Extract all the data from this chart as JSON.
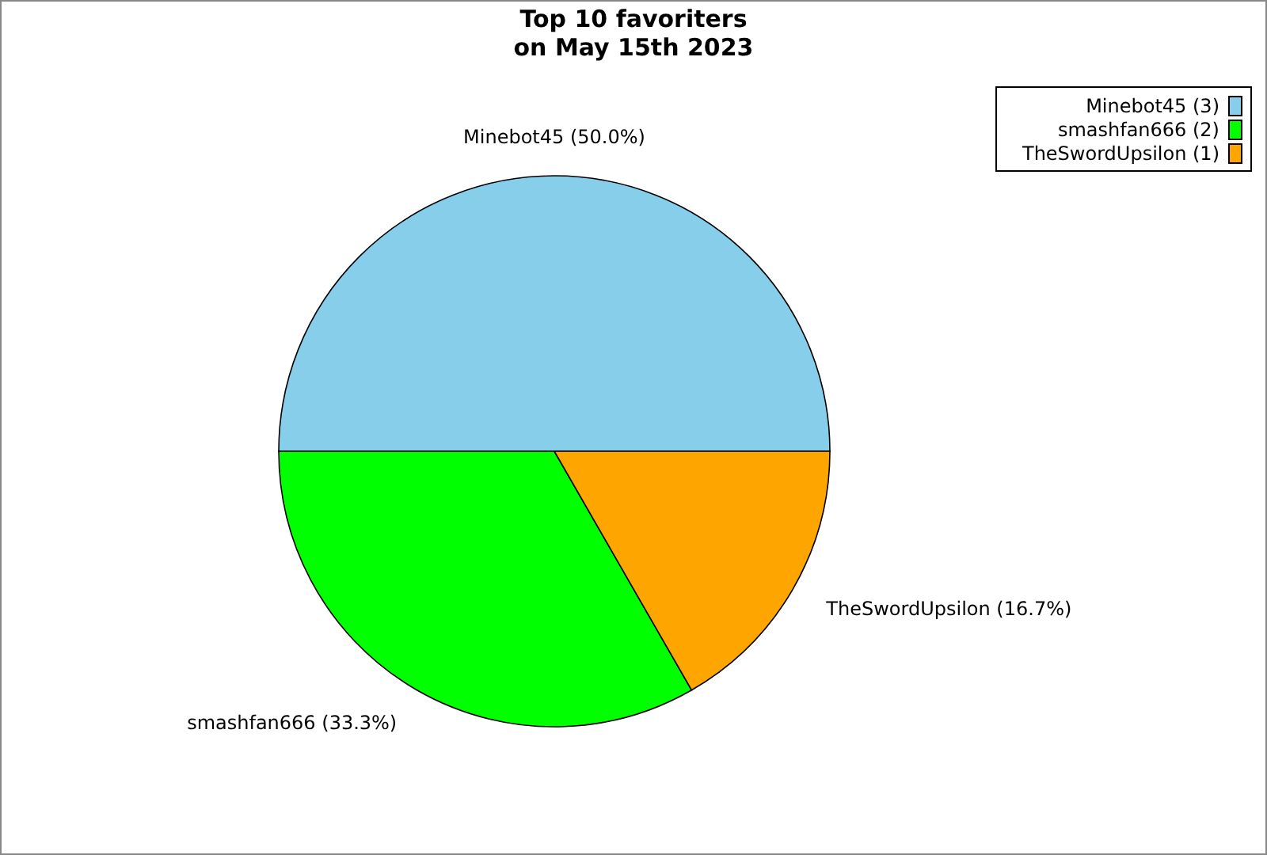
{
  "chart_data": {
    "type": "pie",
    "title": "Top 10 favoriters\non May 15th 2023",
    "categories": [
      "Minebot45 (3)",
      "smashfan666 (2)",
      "TheSwordUpsilon (1)"
    ],
    "values": [
      50.0,
      33.3,
      16.7
    ],
    "colors": [
      "#87ceeb",
      "#00ff00",
      "#ffa500"
    ],
    "value_labels": [
      "Minebot45 (50.0%)",
      "smashfan666 (33.3%)",
      "TheSwordUpsilon (16.7%)"
    ],
    "legend": "top right"
  }
}
